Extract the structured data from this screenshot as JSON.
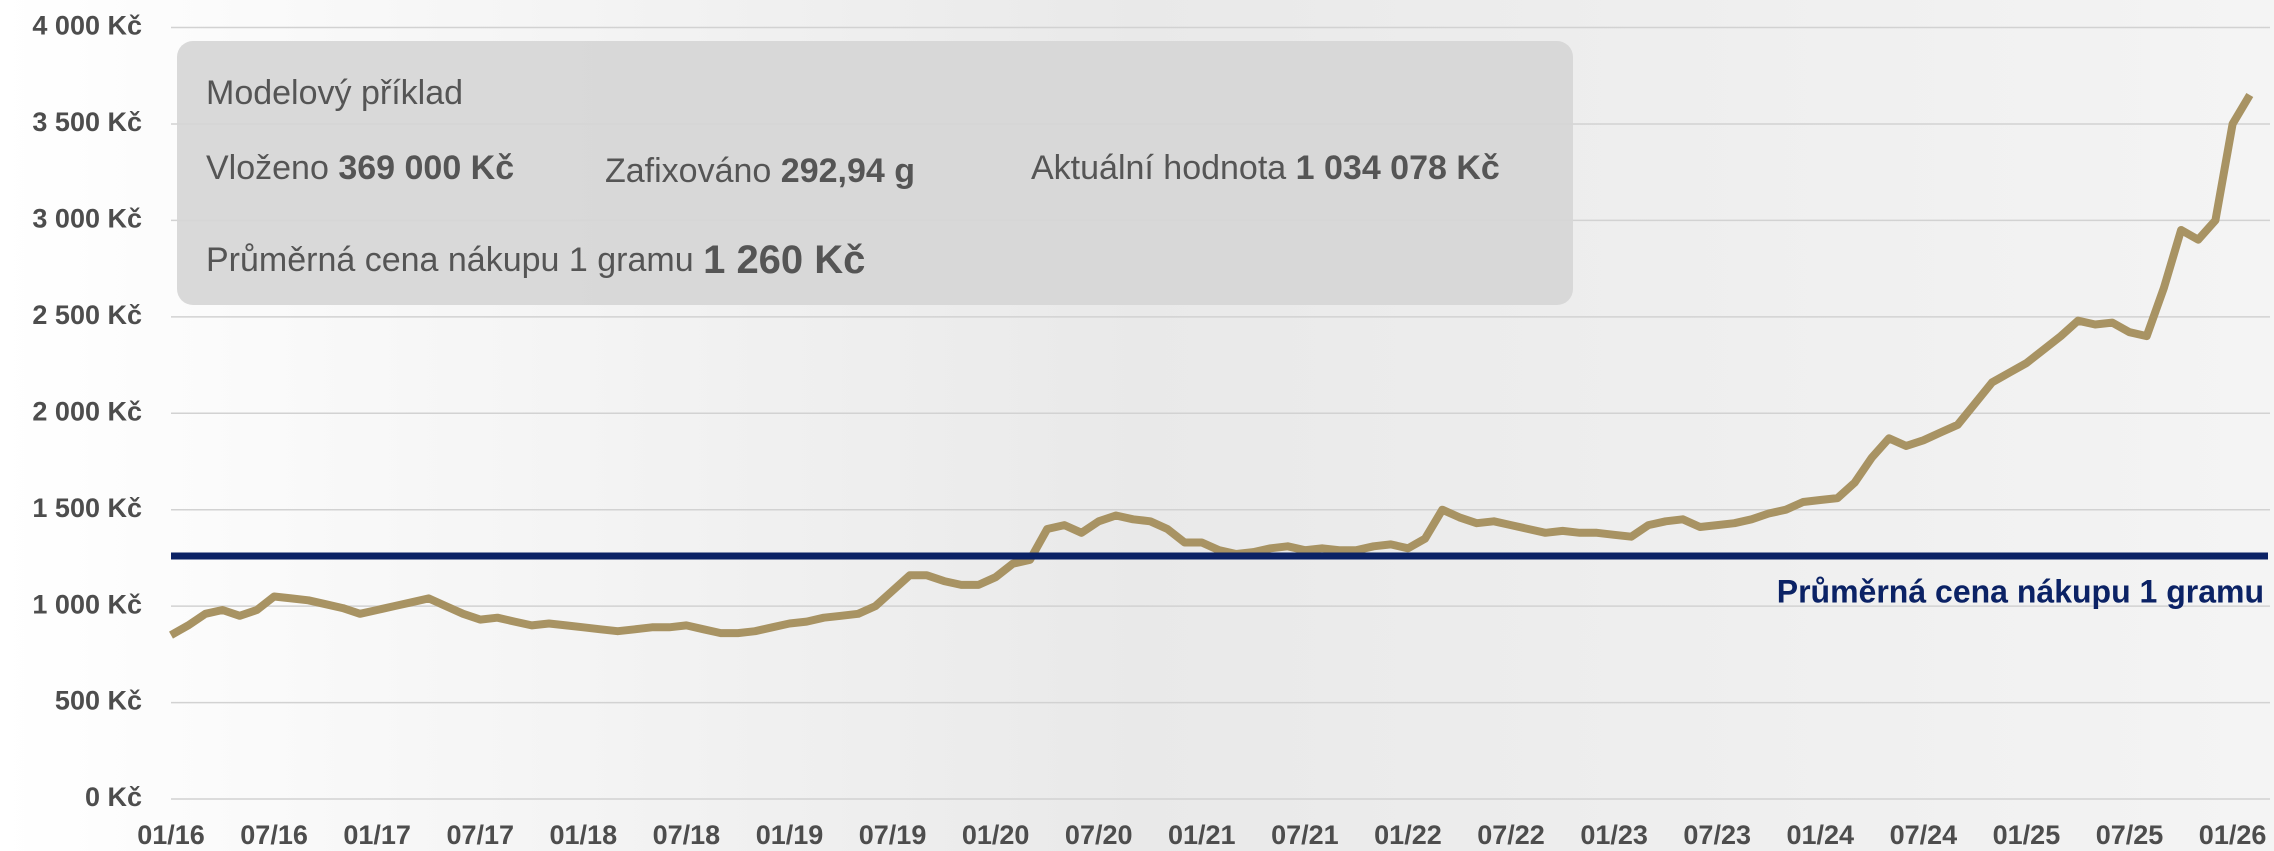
{
  "chart_data": {
    "type": "line",
    "x": [
      "01/16",
      "02/16",
      "03/16",
      "04/16",
      "05/16",
      "06/16",
      "07/16",
      "08/16",
      "09/16",
      "10/16",
      "11/16",
      "12/16",
      "01/17",
      "02/17",
      "03/17",
      "04/17",
      "05/17",
      "06/17",
      "07/17",
      "08/17",
      "09/17",
      "10/17",
      "11/17",
      "12/17",
      "01/18",
      "02/18",
      "03/18",
      "04/18",
      "05/18",
      "06/18",
      "07/18",
      "08/18",
      "09/18",
      "10/18",
      "11/18",
      "12/18",
      "01/19",
      "02/19",
      "03/19",
      "04/19",
      "05/19",
      "06/19",
      "07/19",
      "08/19",
      "09/19",
      "10/19",
      "11/19",
      "12/19",
      "01/20",
      "02/20",
      "03/20",
      "04/20",
      "05/20",
      "06/20",
      "07/20",
      "08/20",
      "09/20",
      "10/20",
      "11/20",
      "12/20",
      "01/21",
      "02/21",
      "03/21",
      "04/21",
      "05/21",
      "06/21",
      "07/21",
      "08/21",
      "09/21",
      "10/21",
      "11/21",
      "12/21",
      "01/22",
      "02/22",
      "03/22",
      "04/22",
      "05/22",
      "06/22",
      "07/22",
      "08/22",
      "09/22",
      "10/22",
      "11/22",
      "12/22",
      "01/23",
      "02/23",
      "03/23",
      "04/23",
      "05/23",
      "06/23",
      "07/23",
      "08/23",
      "09/23",
      "10/23",
      "11/23",
      "12/23",
      "01/24",
      "02/24",
      "03/24",
      "04/24",
      "05/24",
      "06/24",
      "07/24",
      "08/24",
      "09/24",
      "10/24",
      "11/24",
      "12/24",
      "01/25",
      "02/25",
      "03/25",
      "04/25",
      "05/25",
      "06/25",
      "07/25",
      "08/25",
      "09/25",
      "10/25",
      "11/25",
      "12/25",
      "01/26",
      "02/26"
    ],
    "xtick_every": 6,
    "series": [
      {
        "color": "#a89363",
        "values": [
          850,
          900,
          960,
          980,
          950,
          980,
          1050,
          1040,
          1030,
          1010,
          990,
          960,
          980,
          1000,
          1020,
          1040,
          1000,
          960,
          930,
          940,
          920,
          900,
          910,
          900,
          890,
          880,
          870,
          880,
          890,
          890,
          900,
          880,
          860,
          860,
          870,
          890,
          910,
          920,
          940,
          950,
          960,
          1000,
          1080,
          1160,
          1160,
          1130,
          1110,
          1110,
          1150,
          1220,
          1240,
          1400,
          1420,
          1380,
          1440,
          1470,
          1450,
          1440,
          1400,
          1330,
          1330,
          1290,
          1270,
          1280,
          1300,
          1310,
          1290,
          1300,
          1290,
          1290,
          1310,
          1320,
          1300,
          1350,
          1500,
          1460,
          1430,
          1440,
          1420,
          1400,
          1380,
          1390,
          1380,
          1380,
          1370,
          1360,
          1420,
          1440,
          1450,
          1410,
          1420,
          1430,
          1450,
          1480,
          1500,
          1540,
          1550,
          1560,
          1640,
          1770,
          1870,
          1830,
          1860,
          1900,
          1940,
          2050,
          2160,
          2210,
          2260,
          2330,
          2400,
          2480,
          2460,
          2470,
          2420,
          2400,
          2650,
          2950,
          2900,
          3000,
          3500,
          3650
        ]
      }
    ],
    "ylim": [
      0,
      4000
    ],
    "yticks": [
      {
        "value": 0,
        "label": "0 Kč"
      },
      {
        "value": 500,
        "label": "500 Kč"
      },
      {
        "value": 1000,
        "label": "1 000 Kč"
      },
      {
        "value": 1500,
        "label": "1 500 Kč"
      },
      {
        "value": 2000,
        "label": "2 000 Kč"
      },
      {
        "value": 2500,
        "label": "2 500 Kč"
      },
      {
        "value": 3000,
        "label": "3 000 Kč"
      },
      {
        "value": 3500,
        "label": "3 500 Kč"
      },
      {
        "value": 4000,
        "label": "4 000 Kč"
      }
    ],
    "grid": true,
    "reference_line": {
      "value": 1260,
      "label": "Průměrná cena nákupu 1 gramu",
      "color": "#0b2265"
    },
    "info_box": {
      "title": "Modelový příklad",
      "items": [
        {
          "label": "Vloženo",
          "value": "369 000 Kč"
        },
        {
          "label": "Zafixováno",
          "value": "292,94 g"
        },
        {
          "label": "Aktuální hodnota",
          "value": "1 034 078 Kč"
        }
      ],
      "average": {
        "label": "Průměrná cena nákupu 1 gramu",
        "value": "1 260 Kč"
      }
    }
  }
}
